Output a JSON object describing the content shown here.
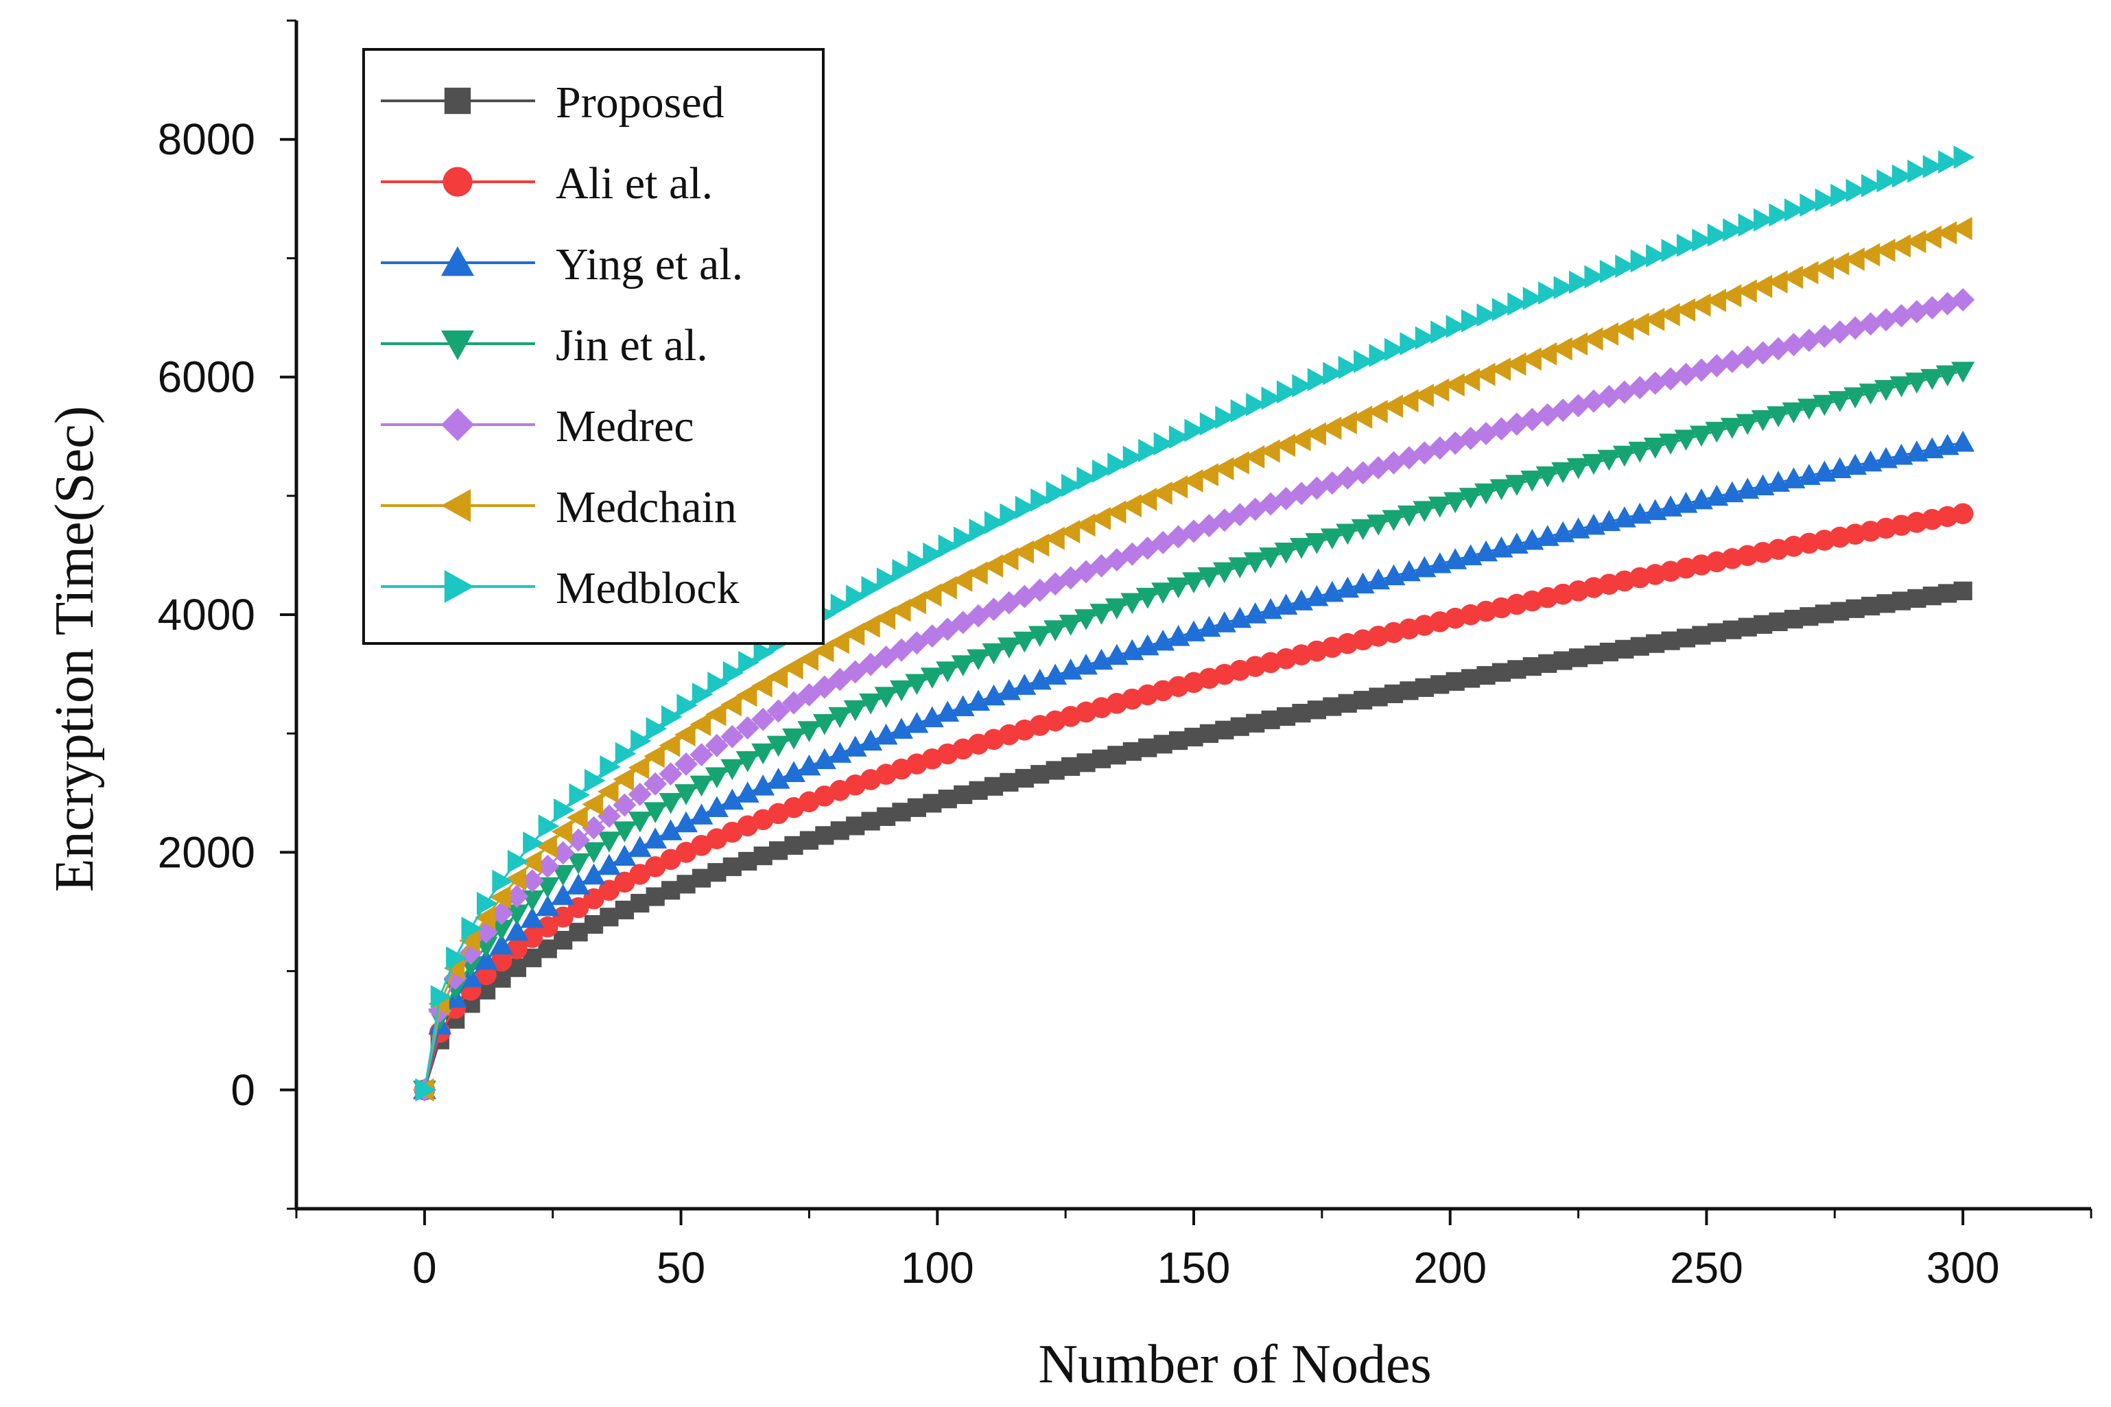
{
  "chart_data": {
    "type": "scatter",
    "xlabel": "Number of Nodes",
    "ylabel": "Encryption Time(Sec)",
    "xlim": [
      -25,
      325
    ],
    "ylim": [
      -1000,
      9000
    ],
    "x_ticks": [
      0,
      50,
      100,
      150,
      200,
      250,
      300
    ],
    "y_ticks": [
      0,
      2000,
      4000,
      6000,
      8000
    ],
    "x_step": 3,
    "x_max": 300,
    "growth_exponent": 0.5,
    "legend_position": "top-left",
    "grid": false,
    "series": [
      {
        "name": "Proposed",
        "marker": "square",
        "color": "#505050",
        "end_value": 4200
      },
      {
        "name": "Ali et al.",
        "marker": "circle",
        "color": "#f43c3c",
        "end_value": 4850
      },
      {
        "name": "Ying et al.",
        "marker": "triangle-up",
        "color": "#1f6fd6",
        "end_value": 5450
      },
      {
        "name": "Jin et al.",
        "marker": "triangle-down",
        "color": "#16a472",
        "end_value": 6050
      },
      {
        "name": "Medrec",
        "marker": "diamond",
        "color": "#b87be6",
        "end_value": 6650
      },
      {
        "name": "Medchain",
        "marker": "triangle-left",
        "color": "#d39c14",
        "end_value": 7250
      },
      {
        "name": "Medblock",
        "marker": "triangle-right",
        "color": "#1cc6c2",
        "end_value": 7850
      }
    ]
  }
}
